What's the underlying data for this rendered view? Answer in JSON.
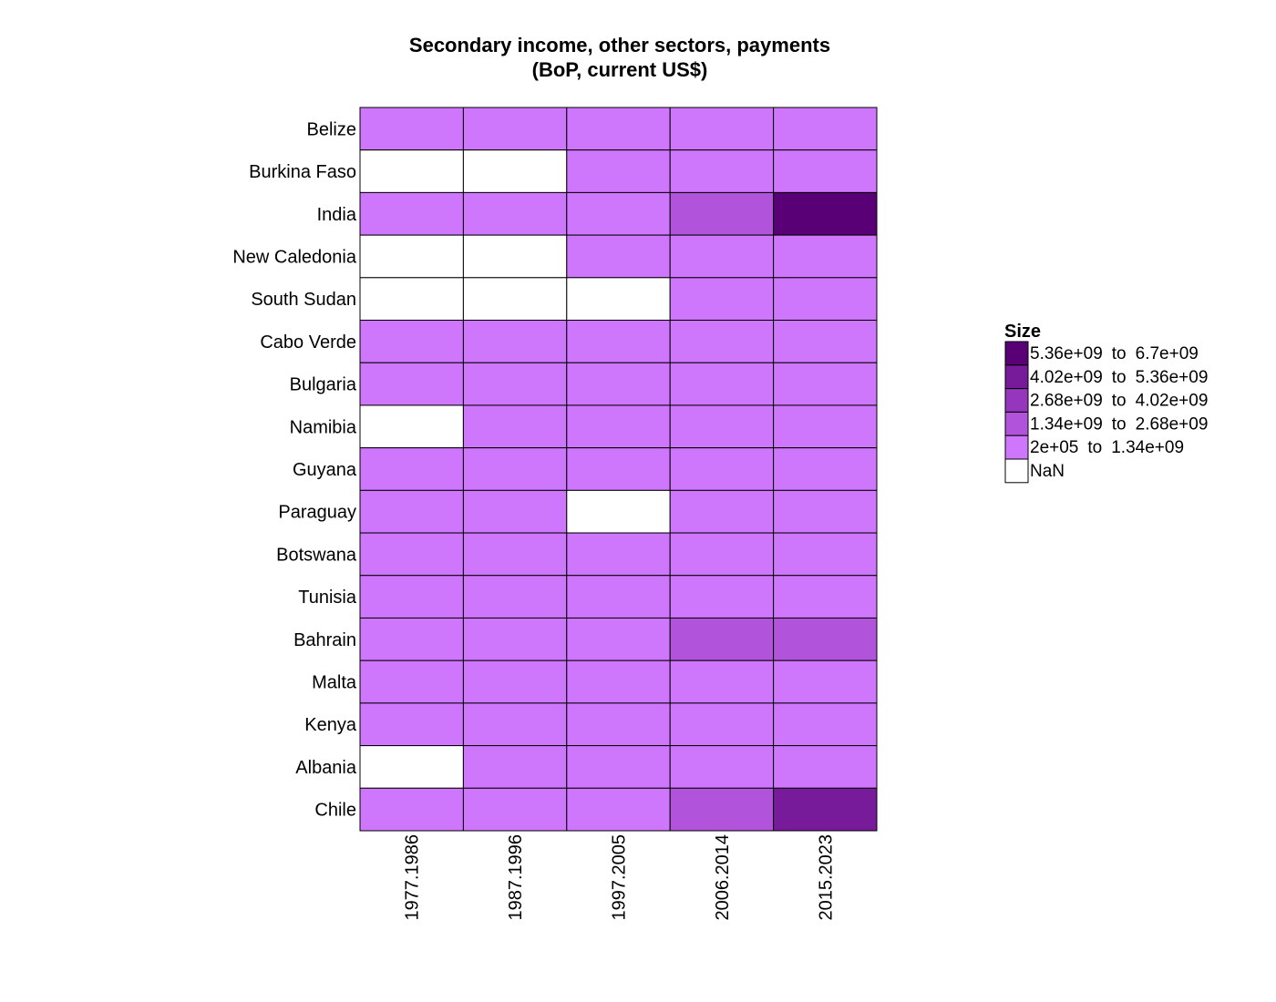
{
  "chart_data": {
    "type": "heatmap",
    "title": [
      "Secondary income, other sectors, payments",
      "(BoP, current US$)"
    ],
    "rows": [
      "Belize",
      "Burkina Faso",
      "India",
      "New Caledonia",
      "South Sudan",
      "Cabo Verde",
      "Bulgaria",
      "Namibia",
      "Guyana",
      "Paraguay",
      "Botswana",
      "Tunisia",
      "Bahrain",
      "Malta",
      "Kenya",
      "Albania",
      "Chile"
    ],
    "columns": [
      "1977.1986",
      "1987.1996",
      "1997.2005",
      "2006.2014",
      "2015.2023"
    ],
    "values": [
      [
        1,
        1,
        1,
        1,
        1
      ],
      [
        null,
        null,
        1,
        1,
        1
      ],
      [
        1,
        1,
        1,
        2,
        5
      ],
      [
        null,
        null,
        1,
        1,
        1
      ],
      [
        null,
        null,
        null,
        1,
        1
      ],
      [
        1,
        1,
        1,
        1,
        1
      ],
      [
        1,
        1,
        1,
        1,
        1
      ],
      [
        null,
        1,
        1,
        1,
        1
      ],
      [
        1,
        1,
        1,
        1,
        1
      ],
      [
        1,
        1,
        null,
        1,
        1
      ],
      [
        1,
        1,
        1,
        1,
        1
      ],
      [
        1,
        1,
        1,
        1,
        1
      ],
      [
        1,
        1,
        1,
        2,
        2
      ],
      [
        1,
        1,
        1,
        1,
        1
      ],
      [
        1,
        1,
        1,
        1,
        1
      ],
      [
        null,
        1,
        1,
        1,
        1
      ],
      [
        1,
        1,
        1,
        2,
        4
      ]
    ],
    "value_encoding": "bin index into legend.bins (1 = lowest bin, 5 = highest), null = NaN",
    "legend": {
      "title": "Size",
      "position": "right",
      "bins": [
        {
          "label_from": "5.36e+09",
          "label_to": "6.7e+09",
          "color": "#5a0076"
        },
        {
          "label_from": "4.02e+09",
          "label_to": "5.36e+09",
          "color": "#781b9a"
        },
        {
          "label_from": "2.68e+09",
          "label_to": "4.02e+09",
          "color": "#9636bd"
        },
        {
          "label_from": "1.34e+09",
          "label_to": "2.68e+09",
          "color": "#b254db"
        },
        {
          "label_from": "2e+05",
          "label_to": "1.34e+09",
          "color": "#cf77fc"
        }
      ],
      "to_word": "to",
      "nan_label": "NaN",
      "nan_color": "#ffffff"
    },
    "grid": true
  }
}
